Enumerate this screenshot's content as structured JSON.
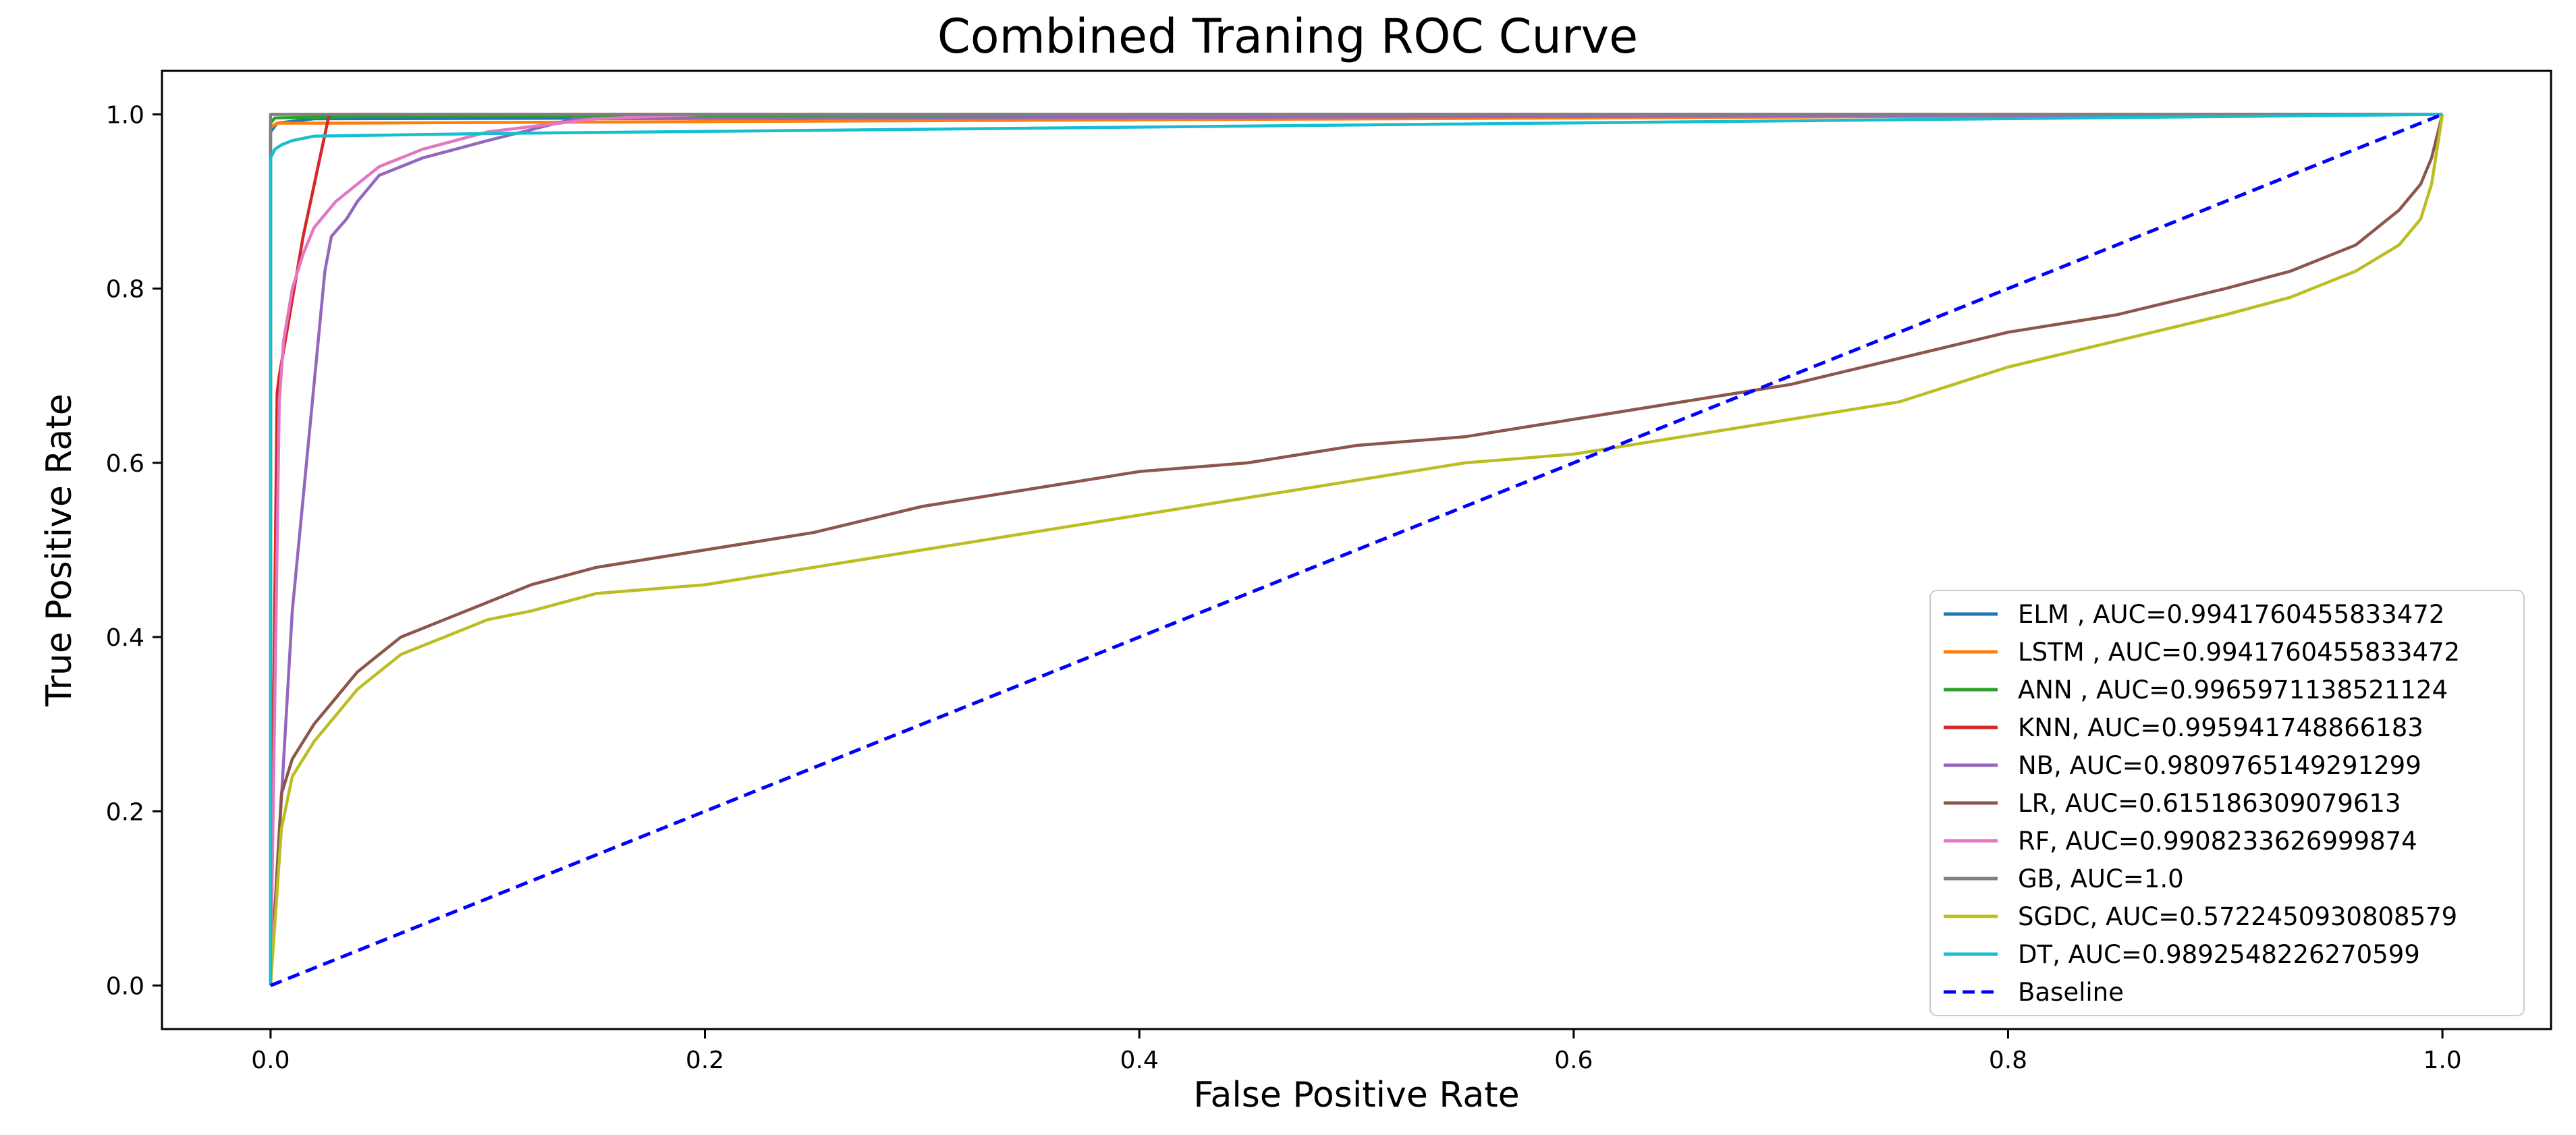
{
  "chart_data": {
    "type": "line",
    "title": "Combined Traning ROC Curve",
    "xlabel": "False Positive Rate",
    "ylabel": "True Positive Rate",
    "xlim": [
      -0.05,
      1.05
    ],
    "ylim": [
      -0.05,
      1.05
    ],
    "xticks": [
      0.0,
      0.2,
      0.4,
      0.6,
      0.8,
      1.0
    ],
    "yticks": [
      0.0,
      0.2,
      0.4,
      0.6,
      0.8,
      1.0
    ],
    "xtick_labels": [
      "0.0",
      "0.2",
      "0.4",
      "0.6",
      "0.8",
      "1.0"
    ],
    "ytick_labels": [
      "0.0",
      "0.2",
      "0.4",
      "0.6",
      "0.8",
      "1.0"
    ],
    "grid": false,
    "legend_position": "lower-right",
    "series": [
      {
        "name": "ELM",
        "label": "ELM , AUC=0.9941760455833472",
        "color": "#1f77b4",
        "dash": false,
        "x": [
          0.0,
          0.0,
          0.003,
          0.02,
          1.0
        ],
        "y": [
          0.0,
          0.98,
          0.99,
          0.995,
          1.0
        ]
      },
      {
        "name": "LSTM",
        "label": "LSTM , AUC=0.9941760455833472",
        "color": "#ff7f0e",
        "dash": false,
        "x": [
          0.0,
          0.0,
          0.003,
          0.03,
          1.0
        ],
        "y": [
          0.0,
          0.985,
          0.99,
          0.99,
          1.0
        ]
      },
      {
        "name": "ANN",
        "label": "ANN , AUC=0.9965971138521124",
        "color": "#2ca02c",
        "dash": false,
        "x": [
          0.0,
          0.0,
          0.002,
          0.05,
          1.0
        ],
        "y": [
          0.0,
          0.99,
          0.996,
          0.998,
          1.0
        ]
      },
      {
        "name": "KNN",
        "label": "KNN, AUC=0.995941748866183",
        "color": "#d62728",
        "dash": false,
        "x": [
          0.0,
          0.003,
          0.004,
          0.015,
          0.027,
          1.0
        ],
        "y": [
          0.0,
          0.68,
          0.7,
          0.86,
          1.0,
          1.0
        ]
      },
      {
        "name": "NB",
        "label": "NB, AUC=0.9809765149291299",
        "color": "#9467bd",
        "dash": false,
        "x": [
          0.0,
          0.01,
          0.025,
          0.028,
          0.035,
          0.04,
          0.05,
          0.07,
          0.1,
          0.14,
          1.0
        ],
        "y": [
          0.0,
          0.43,
          0.82,
          0.86,
          0.88,
          0.9,
          0.93,
          0.95,
          0.97,
          0.995,
          1.0
        ]
      },
      {
        "name": "LR",
        "label": "LR, AUC=0.615186309079613",
        "color": "#8c564b",
        "dash": false,
        "x": [
          0.0,
          0.005,
          0.01,
          0.02,
          0.03,
          0.04,
          0.05,
          0.06,
          0.08,
          0.1,
          0.12,
          0.15,
          0.2,
          0.25,
          0.3,
          0.35,
          0.4,
          0.45,
          0.5,
          0.55,
          0.6,
          0.65,
          0.7,
          0.75,
          0.8,
          0.85,
          0.9,
          0.93,
          0.96,
          0.98,
          0.99,
          0.995,
          1.0
        ],
        "y": [
          0.0,
          0.22,
          0.26,
          0.3,
          0.33,
          0.36,
          0.38,
          0.4,
          0.42,
          0.44,
          0.46,
          0.48,
          0.5,
          0.52,
          0.55,
          0.57,
          0.59,
          0.6,
          0.62,
          0.63,
          0.65,
          0.67,
          0.69,
          0.72,
          0.75,
          0.77,
          0.8,
          0.82,
          0.85,
          0.89,
          0.92,
          0.95,
          1.0
        ]
      },
      {
        "name": "RF",
        "label": "RF, AUC=0.9908233626999874",
        "color": "#e377c2",
        "dash": false,
        "x": [
          0.0,
          0.004,
          0.006,
          0.01,
          0.015,
          0.02,
          0.03,
          0.04,
          0.05,
          0.07,
          0.1,
          0.15,
          0.2,
          1.0
        ],
        "y": [
          0.0,
          0.67,
          0.74,
          0.8,
          0.84,
          0.87,
          0.9,
          0.92,
          0.94,
          0.96,
          0.98,
          0.995,
          1.0,
          1.0
        ]
      },
      {
        "name": "GB",
        "label": "GB, AUC=1.0",
        "color": "#7f7f7f",
        "dash": false,
        "x": [
          0.0,
          0.0,
          1.0
        ],
        "y": [
          0.0,
          1.0,
          1.0
        ]
      },
      {
        "name": "SGDC",
        "label": "SGDC, AUC=0.5722450930808579",
        "color": "#bcbd22",
        "dash": false,
        "x": [
          0.0,
          0.005,
          0.01,
          0.02,
          0.03,
          0.04,
          0.05,
          0.06,
          0.08,
          0.1,
          0.12,
          0.15,
          0.2,
          0.25,
          0.3,
          0.35,
          0.4,
          0.45,
          0.5,
          0.55,
          0.6,
          0.65,
          0.7,
          0.75,
          0.8,
          0.85,
          0.9,
          0.93,
          0.96,
          0.98,
          0.99,
          0.995,
          1.0
        ],
        "y": [
          0.0,
          0.18,
          0.24,
          0.28,
          0.31,
          0.34,
          0.36,
          0.38,
          0.4,
          0.42,
          0.43,
          0.45,
          0.46,
          0.48,
          0.5,
          0.52,
          0.54,
          0.56,
          0.58,
          0.6,
          0.61,
          0.63,
          0.65,
          0.67,
          0.71,
          0.74,
          0.77,
          0.79,
          0.82,
          0.85,
          0.88,
          0.92,
          1.0
        ]
      },
      {
        "name": "DT",
        "label": "DT, AUC=0.9892548226270599",
        "color": "#17becf",
        "dash": false,
        "x": [
          0.0,
          0.0,
          0.002,
          0.005,
          0.01,
          0.02,
          0.1,
          1.0
        ],
        "y": [
          0.0,
          0.95,
          0.96,
          0.965,
          0.97,
          0.975,
          0.978,
          1.0
        ]
      },
      {
        "name": "Baseline",
        "label": "Baseline",
        "color": "#0000ff",
        "dash": true,
        "x": [
          0.0,
          1.0
        ],
        "y": [
          0.0,
          1.0
        ]
      }
    ]
  }
}
